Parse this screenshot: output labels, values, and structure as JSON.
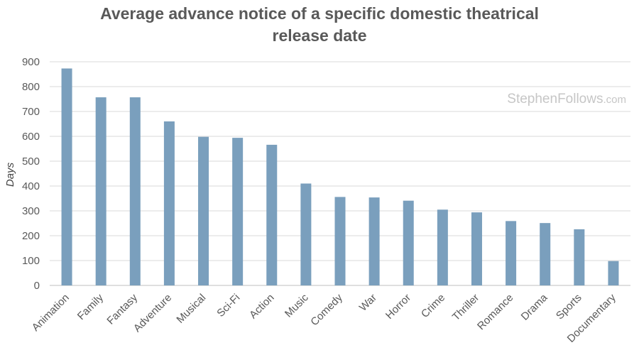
{
  "chart_data": {
    "type": "bar",
    "title_lines": [
      "Average advance notice of a specific domestic theatrical",
      "release date"
    ],
    "xlabel": "",
    "ylabel": "Days",
    "ylim": [
      0,
      900
    ],
    "yticks": [
      0,
      100,
      200,
      300,
      400,
      500,
      600,
      700,
      800,
      900
    ],
    "grid": true,
    "categories": [
      "Animation",
      "Family",
      "Fantasy",
      "Adventure",
      "Musical",
      "Sci-Fi",
      "Action",
      "Music",
      "Comedy",
      "War",
      "Horror",
      "Crime",
      "Thriller",
      "Romance",
      "Drama",
      "Sports",
      "Documentary"
    ],
    "values": [
      873,
      757,
      757,
      660,
      598,
      594,
      566,
      410,
      356,
      354,
      341,
      305,
      294,
      259,
      251,
      226,
      98
    ],
    "bar_color": "#7a9fbd",
    "grid_color": "#d9d9d9",
    "watermark": {
      "main": "StephenFollows",
      "suffix": ".com"
    }
  }
}
